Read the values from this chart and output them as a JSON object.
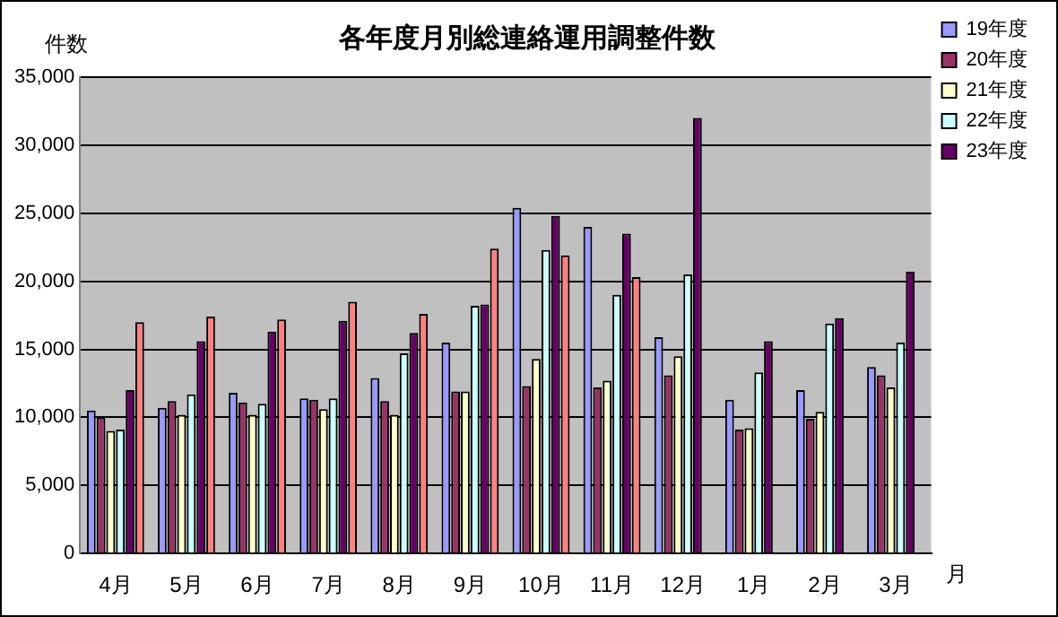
{
  "chart_data": {
    "type": "bar",
    "title": "各年度月別総連絡運用調整件数",
    "xlabel": "月",
    "ylabel": "件数",
    "categories": [
      "4月",
      "5月",
      "6月",
      "7月",
      "8月",
      "9月",
      "10月",
      "11月",
      "12月",
      "1月",
      "2月",
      "3月"
    ],
    "series": [
      {
        "name": "19年度",
        "color": "#9999ff",
        "values": [
          10500,
          10700,
          11800,
          11400,
          12900,
          15500,
          25400,
          24000,
          15900,
          11300,
          12000,
          13700
        ]
      },
      {
        "name": "20年度",
        "color": "#993366",
        "values": [
          10000,
          11200,
          11100,
          11300,
          11200,
          11900,
          12300,
          12200,
          13100,
          9100,
          9900,
          13100
        ]
      },
      {
        "name": "21年度",
        "color": "#ffffcc",
        "values": [
          9000,
          10200,
          10200,
          10600,
          10200,
          11900,
          14300,
          12700,
          14500,
          9200,
          10400,
          12200
        ]
      },
      {
        "name": "22年度",
        "color": "#ccffff",
        "values": [
          9100,
          11700,
          11000,
          11400,
          14700,
          18200,
          22300,
          19000,
          20500,
          13300,
          16900,
          15500
        ]
      },
      {
        "name": "23年度",
        "color": "#660066",
        "values": [
          12000,
          15600,
          16300,
          17100,
          16200,
          18300,
          24800,
          23500,
          32000,
          15600,
          17300,
          20700
        ]
      },
      {
        "color": "#ff8080",
        "values": [
          17000,
          17400,
          17200,
          18500,
          17600,
          22400,
          21900,
          20300,
          null,
          null,
          null,
          null
        ]
      }
    ],
    "ylim": [
      0,
      35000
    ],
    "yticks": [
      0,
      {
        "value": 5000,
        "label": "5,000"
      },
      {
        "value": 10000,
        "label": "10,000"
      },
      {
        "value": 15000,
        "label": "15,000"
      },
      {
        "value": 20000,
        "label": "20,000"
      },
      {
        "value": 25000,
        "label": "25,000"
      },
      {
        "value": 30000,
        "label": "30,000"
      },
      {
        "value": 35000,
        "label": "35,000"
      }
    ],
    "grid": "y",
    "legend": "top right"
  }
}
